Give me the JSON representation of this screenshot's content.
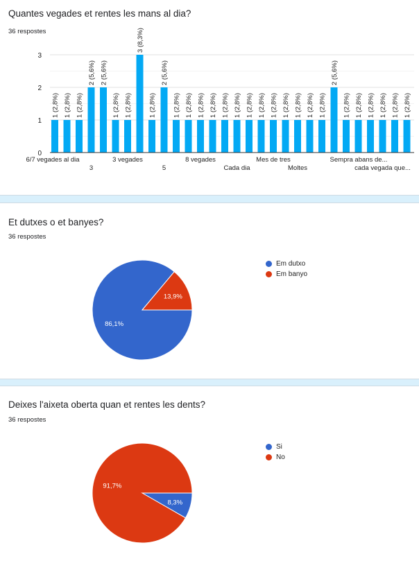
{
  "chart_data": [
    {
      "type": "bar",
      "title": "Quantes vegades et rentes les mans al dia?",
      "responses": "36 respostes",
      "categories": [
        "6/7 vegades al dia",
        "",
        "",
        "3",
        "",
        "",
        "3 vegades",
        "",
        "",
        "5",
        "",
        "",
        "8 vegades",
        "",
        "",
        "Cada dia",
        "",
        "",
        "Mes de tres",
        "",
        "Moltes",
        "",
        "",
        "",
        "Sempra abans de...",
        "",
        "",
        "cada vegada que...",
        "",
        ""
      ],
      "values": [
        1,
        1,
        1,
        2,
        2,
        1,
        1,
        3,
        1,
        2,
        1,
        1,
        1,
        1,
        1,
        1,
        1,
        1,
        1,
        1,
        1,
        1,
        1,
        2,
        1,
        1,
        1,
        1,
        1,
        1
      ],
      "data_labels": [
        "1 (2,8%)",
        "1 (2,8%)",
        "1 (2,8%)",
        "2 (5,6%)",
        "2 (5,6%)",
        "1 (2,8%)",
        "1 (2,8%)",
        "3 (8,3%)",
        "1 (2,8%)",
        "2 (5,6%)",
        "1 (2,8%)",
        "1 (2,8%)",
        "1 (2,8%)",
        "1 (2,8%)",
        "1 (2,8%)",
        "1 (2,8%)",
        "1 (2,8%)",
        "1 (2,8%)",
        "1 (2,8%)",
        "1 (2,8%)",
        "1 (2,8%)",
        "1 (2,8%)",
        "1 (2,8%)",
        "2 (5,6%)",
        "1 (2,8%)",
        "1 (2,8%)",
        "1 (2,8%)",
        "1 (2,8%)",
        "1 (2,8%)",
        "1 (2,8%)"
      ],
      "ylim": [
        0,
        3
      ],
      "yticks": [
        "0",
        "1",
        "2",
        "3"
      ],
      "color": "#03a9f4",
      "grid": true
    },
    {
      "type": "pie",
      "title": "Et dutxes o et banyes?",
      "responses": "36 respostes",
      "slices": [
        {
          "label": "Em dutxo",
          "value": 86.1,
          "text": "86,1%",
          "color": "#3366cc"
        },
        {
          "label": "Em banyo",
          "value": 13.9,
          "text": "13,9%",
          "color": "#dc3912"
        }
      ],
      "legend": "right"
    },
    {
      "type": "pie",
      "title": "Deixes l'aixeta oberta quan et rentes les dents?",
      "responses": "36 respostes",
      "slices": [
        {
          "label": "Si",
          "value": 8.3,
          "text": "8,3%",
          "color": "#3366cc"
        },
        {
          "label": "No",
          "value": 91.7,
          "text": "91,7%",
          "color": "#dc3912"
        }
      ],
      "legend": "right"
    }
  ]
}
